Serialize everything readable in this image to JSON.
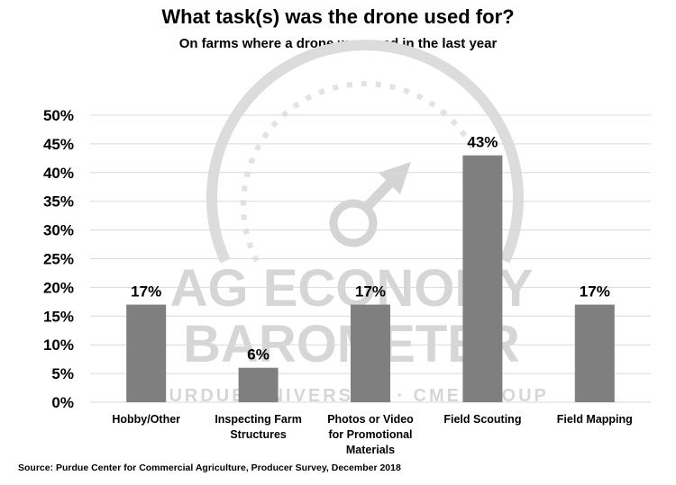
{
  "watermark": {
    "line1": "AG ECONOMY",
    "line2": "BAROMETER",
    "line3": "PURDUE UNIVERSITY · CME GROUP",
    "icon": "gauge-icon"
  },
  "source": "Source: Purdue Center for Commercial Agriculture, Producer Survey, December 2018",
  "chart_data": {
    "type": "bar",
    "title": "What task(s) was the drone used for?",
    "subtitle": "On farms where a drone was used in the last year",
    "categories": [
      [
        "Hobby/Other"
      ],
      [
        "Inspecting Farm",
        "Structures"
      ],
      [
        "Photos or Video",
        "for Promotional",
        "Materials"
      ],
      [
        "Field Scouting"
      ],
      [
        "Field Mapping"
      ]
    ],
    "values": [
      17,
      6,
      17,
      43,
      17
    ],
    "data_labels": [
      "17%",
      "6%",
      "17%",
      "43%",
      "17%"
    ],
    "yticks": [
      "0%",
      "5%",
      "10%",
      "15%",
      "20%",
      "25%",
      "30%",
      "35%",
      "40%",
      "45%",
      "50%"
    ],
    "ylim": [
      0,
      50
    ],
    "grid": true,
    "bar_color": "#7f7f7f",
    "grid_color": "#d9d9d9"
  }
}
